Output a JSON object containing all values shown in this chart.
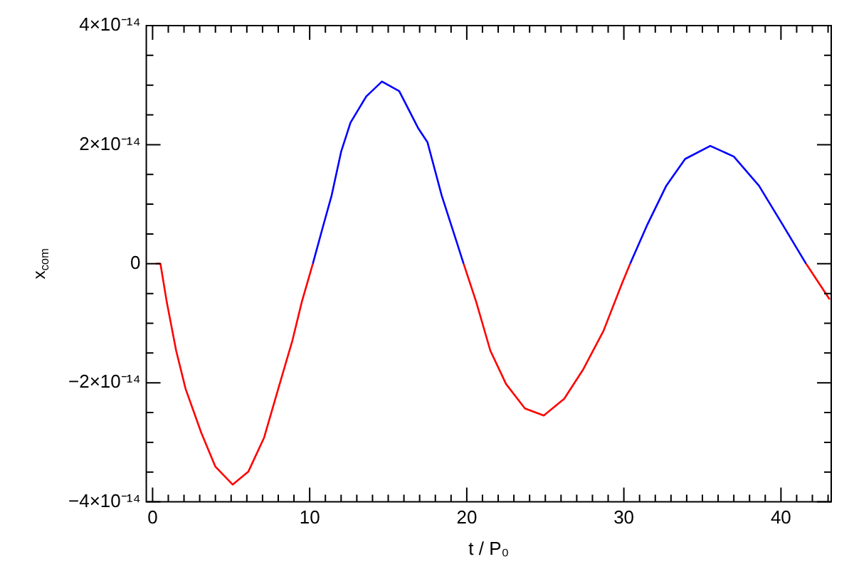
{
  "chart_data": {
    "type": "line",
    "xlabel": "t / P₀",
    "ylabel": "x$_{com}$",
    "xlim": [
      -0.4,
      43.2
    ],
    "ylim": [
      -4e-14,
      4e-14
    ],
    "xticks": [
      0,
      {
        "value": 1,
        "label": null
      },
      {
        "value": 2,
        "label": null
      },
      {
        "value": 3,
        "label": null
      },
      {
        "value": 4,
        "label": null
      },
      {
        "value": 5,
        "label": null
      },
      {
        "value": 6,
        "label": null
      },
      {
        "value": 7,
        "label": null
      },
      {
        "value": 8,
        "label": null
      },
      {
        "value": 9,
        "label": null
      },
      10,
      {
        "value": 11,
        "label": null
      },
      {
        "value": 12,
        "label": null
      },
      {
        "value": 13,
        "label": null
      },
      {
        "value": 14,
        "label": null
      },
      {
        "value": 15,
        "label": null
      },
      {
        "value": 16,
        "label": null
      },
      {
        "value": 17,
        "label": null
      },
      {
        "value": 18,
        "label": null
      },
      {
        "value": 19,
        "label": null
      },
      20,
      {
        "value": 21,
        "label": null
      },
      {
        "value": 22,
        "label": null
      },
      {
        "value": 23,
        "label": null
      },
      {
        "value": 24,
        "label": null
      },
      {
        "value": 25,
        "label": null
      },
      {
        "value": 26,
        "label": null
      },
      {
        "value": 27,
        "label": null
      },
      {
        "value": 28,
        "label": null
      },
      {
        "value": 29,
        "label": null
      },
      30,
      {
        "value": 31,
        "label": null
      },
      {
        "value": 32,
        "label": null
      },
      {
        "value": 33,
        "label": null
      },
      {
        "value": 34,
        "label": null
      },
      {
        "value": 35,
        "label": null
      },
      {
        "value": 36,
        "label": null
      },
      {
        "value": 37,
        "label": null
      },
      {
        "value": 38,
        "label": null
      },
      {
        "value": 39,
        "label": null
      },
      40,
      {
        "value": 41,
        "label": null
      },
      {
        "value": 42,
        "label": null
      },
      {
        "value": 43,
        "label": null
      }
    ],
    "yticks": [
      {
        "value": -4e-14,
        "label": "−4×10⁻¹⁴"
      },
      {
        "value": -3.5e-14,
        "label": null
      },
      {
        "value": -3e-14,
        "label": null
      },
      {
        "value": -2.5e-14,
        "label": null
      },
      {
        "value": -2e-14,
        "label": "−2×10⁻¹⁴"
      },
      {
        "value": -1.5e-14,
        "label": null
      },
      {
        "value": -1e-14,
        "label": null
      },
      {
        "value": -5e-15,
        "label": null
      },
      0,
      {
        "value": 5e-15,
        "label": null
      },
      {
        "value": 1e-14,
        "label": null
      },
      {
        "value": 1.5e-14,
        "label": null
      },
      {
        "value": 2e-14,
        "label": "2×10⁻¹⁴"
      },
      {
        "value": 2.5e-14,
        "label": null
      },
      {
        "value": 3e-14,
        "label": null
      },
      {
        "value": 3.5e-14,
        "label": null
      },
      {
        "value": 4e-14,
        "label": "4×10⁻¹⁴"
      }
    ],
    "grid": false,
    "legend": false,
    "series": [
      {
        "color": "#ff0000",
        "x": [
          0.2,
          0.5,
          0.9,
          1.5,
          2.1,
          3.1,
          4,
          5.1,
          6.1,
          7.1,
          8,
          8.9,
          9.5,
          10.2,
          15,
          19.8,
          20.6,
          21.5,
          22.5,
          23.7,
          24.9,
          26.2,
          27.4,
          28.7,
          29.9,
          30.4,
          36,
          41.6,
          43.1
        ],
        "values": [
          0,
          0,
          -6.4e-15,
          -1.46e-14,
          -2.1e-14,
          -2.84e-14,
          -3.41e-14,
          -3.71e-14,
          -3.49e-14,
          -2.92e-14,
          -2.1e-14,
          -1.29e-14,
          -6.4e-15,
          0,
          null,
          0,
          -6.4e-15,
          -1.46e-14,
          -2.02e-14,
          -2.43e-14,
          -2.55e-14,
          -2.27e-14,
          -1.78e-14,
          -1.13e-14,
          -3.2e-15,
          0,
          null,
          0,
          -6e-15
        ]
      },
      {
        "color": "#0000ff",
        "x": [
          10.2,
          10.8,
          11.4,
          12,
          12.6,
          13.6,
          14.6,
          15.7,
          16.9,
          17.5,
          18.4,
          19.4,
          19.8,
          25,
          30.4,
          31.5,
          32.7,
          33.9,
          35.5,
          37,
          38.6,
          40.1,
          41.6
        ],
        "values": [
          0,
          5.8e-15,
          1.15e-14,
          1.88e-14,
          2.37e-14,
          2.81e-14,
          3.06e-14,
          2.9e-14,
          2.28e-14,
          2.04e-14,
          1.15e-14,
          3.3e-15,
          0,
          null,
          0,
          6.6e-15,
          1.31e-14,
          1.76e-14,
          1.98e-14,
          1.8e-14,
          1.31e-14,
          6.6e-15,
          0
        ]
      }
    ]
  }
}
